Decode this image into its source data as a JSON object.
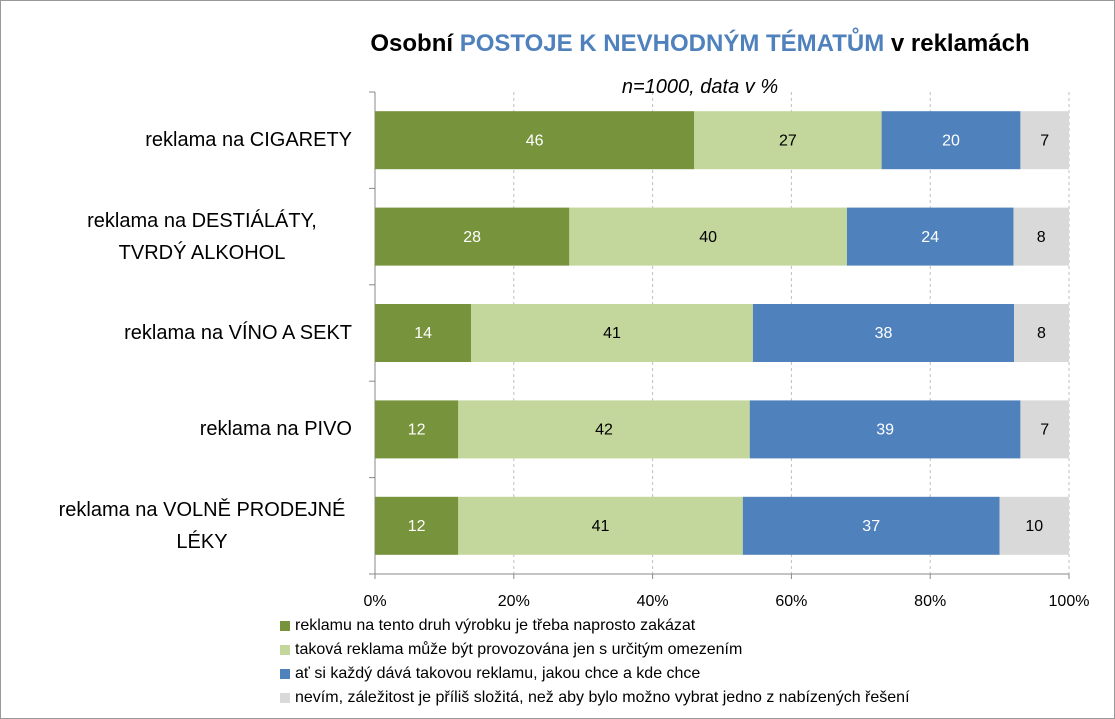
{
  "chart_data": {
    "type": "bar",
    "orientation": "horizontal",
    "stacked": "percent",
    "title": [
      "Osobní",
      "POSTOJE K NEVHODNÝM TÉMATŮM",
      "v reklamách"
    ],
    "title_colors": [
      "#000000",
      "#4f81bd",
      "#000000"
    ],
    "subtitle": "n=1000, data v %",
    "categories": [
      "reklama na CIGARETY",
      "reklama na DESTIÁLÁTY, TVRDÝ ALKOHOL",
      "reklama na VÍNO A SEKT",
      "reklama na PIVO",
      "reklama na VOLNĚ PRODEJNÉ LÉKY"
    ],
    "series": [
      {
        "name": "reklamu na tento druh výrobku je třeba naprosto zakázat",
        "color": "#77933c",
        "values": [
          46,
          28,
          14,
          12,
          12
        ]
      },
      {
        "name": "taková reklama může být provozována jen s určitým omezením",
        "color": "#c3d69b",
        "values": [
          27,
          40,
          41,
          42,
          41
        ]
      },
      {
        "name": "ať si každý dává takovou reklamu, jakou chce a kde chce",
        "color": "#4f81bd",
        "values": [
          20,
          24,
          38,
          39,
          37
        ]
      },
      {
        "name": "nevím, záležitost je příliš složitá, než aby bylo možno vybrat jedno z nabízených řešení",
        "color": "#d9d9d9",
        "values": [
          7,
          8,
          8,
          7,
          10
        ]
      }
    ],
    "xlim": [
      0,
      100
    ],
    "xticks": [
      {
        "value": 0,
        "label": "0%"
      },
      {
        "value": 20,
        "label": "20%"
      },
      {
        "value": 40,
        "label": "40%"
      },
      {
        "value": 60,
        "label": "60%"
      },
      {
        "value": 80,
        "label": "80%"
      },
      {
        "value": 100,
        "label": "100%"
      }
    ],
    "grid": true,
    "legend": "bottom"
  }
}
